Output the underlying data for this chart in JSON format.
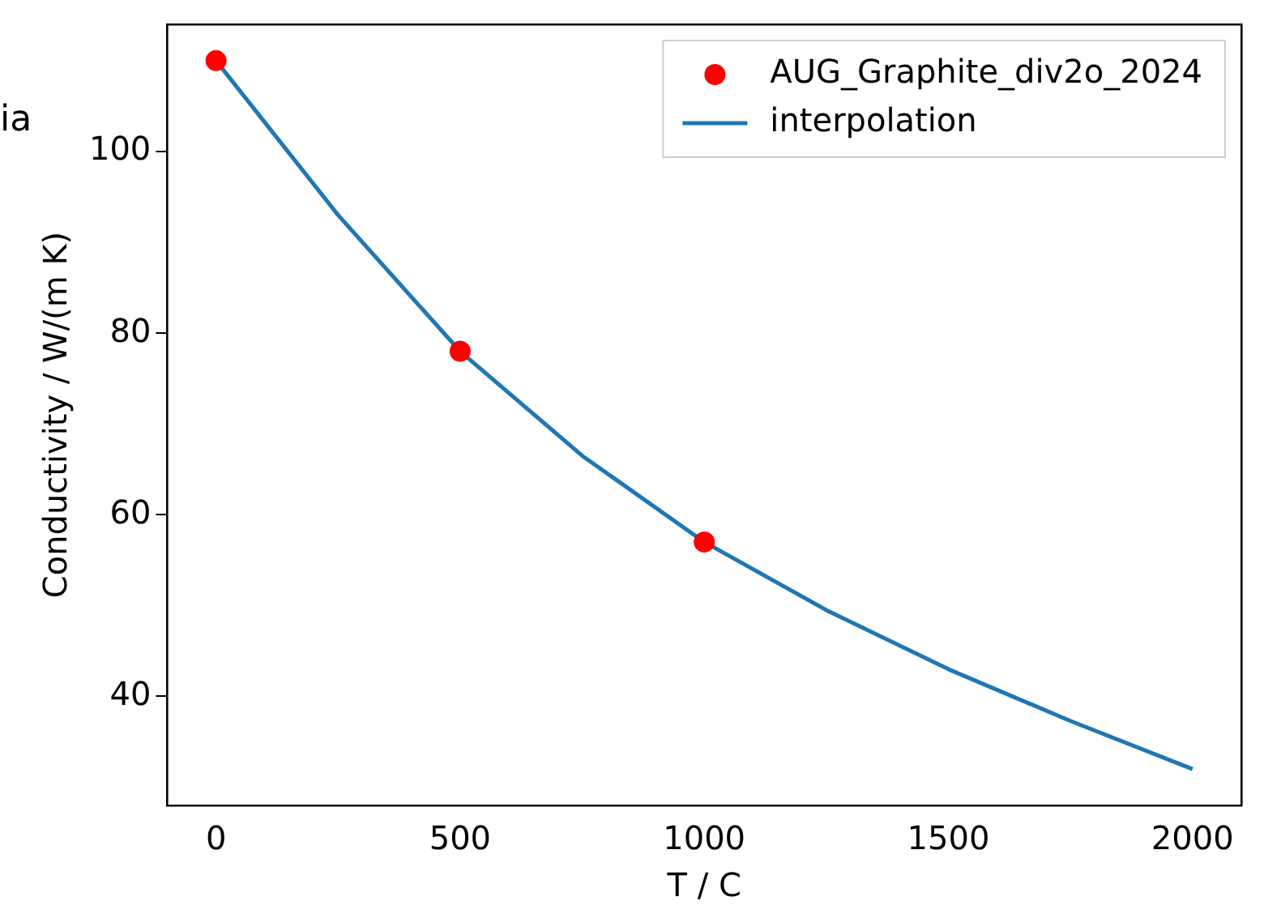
{
  "chart_data": {
    "type": "line",
    "xlabel": "T / C",
    "ylabel": "Conductivity / W/(m K)",
    "annotations": [
      "ia"
    ],
    "series": [
      {
        "name": "AUG_Graphite_div2o_2024",
        "type": "scatter",
        "color": "#ff0000",
        "marker": "circle",
        "x": [
          0,
          500,
          1000
        ],
        "values": [
          110,
          78,
          57
        ]
      },
      {
        "name": "interpolation",
        "color": "#1f77b4",
        "marker": "none",
        "x": [
          0,
          250,
          500,
          750,
          1000,
          1250,
          1500,
          1750,
          2000
        ],
        "values": [
          110,
          93,
          78,
          66.5,
          57,
          49.5,
          43,
          37.3,
          32
        ]
      }
    ],
    "xlim": [
      -100,
      2100
    ],
    "xticks": [
      0,
      500,
      1000,
      1500,
      2000
    ],
    "ylim": [
      28,
      114
    ],
    "yticks": [
      40,
      60,
      80,
      100
    ],
    "grid": false,
    "legend": "top right"
  }
}
